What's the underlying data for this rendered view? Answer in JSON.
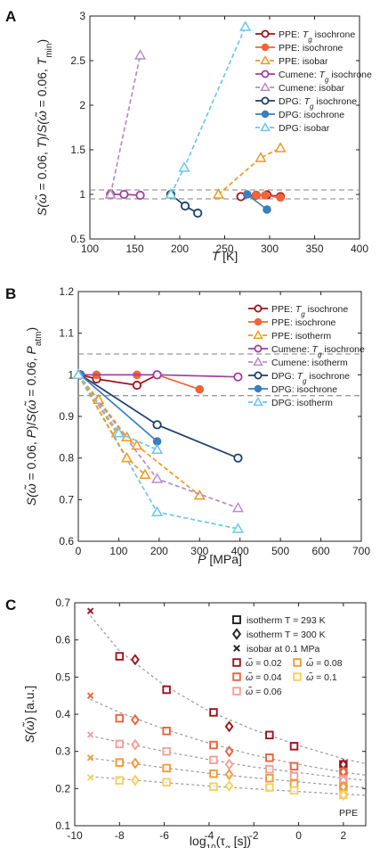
{
  "colors": {
    "ppe_tg": "#a1111a",
    "ppe_iso": "#f0643a",
    "ppe_bar": "#f0981f",
    "cumene": "#a040a0",
    "cumene_light": "#b88bc9",
    "dpg_tg": "#1c3f6e",
    "dpg_iso": "#3a7fbf",
    "dpg_bar": "#6bc6ec",
    "c_002": "#9b1420",
    "c_004": "#e9633a",
    "c_006": "#f2a198",
    "c_008": "#f19a38",
    "c_01": "#f7cf5b",
    "fit": "#9a9a9a",
    "ref": "#9a9a9a",
    "ppe_dark_marker": "#7b0f18"
  },
  "chart_data": [
    {
      "panel": "A",
      "type": "line",
      "ylabel": "S(ω̃ = 0.06, T) / S(ω̃ = 0.06, T_min)",
      "ylabel_parts": [
        "S(",
        "ω̃",
        " = 0.06, ",
        "T",
        ")/",
        "S(",
        "ω̃",
        " = 0.06, ",
        "T",
        "min",
        ")"
      ],
      "xlabel": "T",
      "xlabel_unit": "[K]",
      "xlim": [
        100,
        400
      ],
      "ylim": [
        0.5,
        3
      ],
      "xticks": [
        100,
        150,
        200,
        250,
        300,
        350,
        400
      ],
      "yticks": [
        0.5,
        1,
        1.5,
        2,
        2.5,
        3
      ],
      "ytick_labels": [
        "0.5",
        "1",
        "1.5",
        "2",
        "2.5",
        "3"
      ],
      "ref_lines": [
        0.95,
        1.05
      ],
      "legend_position": "top-right",
      "series": [
        {
          "name": "PPE: ",
          "name_italic": "T",
          "name_sub": "g",
          "name_tail": " isochrone",
          "color": "#a1111a",
          "marker": "circle-open",
          "style": "solid",
          "x": [
            268,
            285,
            297,
            312
          ],
          "y": [
            0.975,
            0.99,
            0.995,
            0.975
          ]
        },
        {
          "name": "PPE: isochrone",
          "color": "#f0643a",
          "marker": "circle-filled",
          "style": "solid",
          "x": [
            285,
            295,
            312
          ],
          "y": [
            0.99,
            0.99,
            0.965
          ]
        },
        {
          "name": "PPE: isobar",
          "color": "#f0981f",
          "marker": "triangle-open",
          "style": "dashed",
          "x": [
            243,
            290,
            312
          ],
          "y": [
            1.0,
            1.41,
            1.52
          ]
        },
        {
          "name": "Cumene: ",
          "name_italic": "T",
          "name_sub": "g",
          "name_tail": " isochrone",
          "color": "#a040a0",
          "marker": "circle-open",
          "style": "solid",
          "x": [
            123,
            138,
            156
          ],
          "y": [
            1.0,
            1.0,
            0.99
          ]
        },
        {
          "name": "Cumene: isobar",
          "color": "#b88bc9",
          "marker": "triangle-open",
          "style": "dashed",
          "x": [
            123,
            156
          ],
          "y": [
            1.0,
            2.56
          ]
        },
        {
          "name": "DPG: ",
          "name_italic": "T",
          "name_sub": "g",
          "name_tail": " isochrone",
          "color": "#1c3f6e",
          "marker": "circle-open",
          "style": "solid",
          "x": [
            190,
            206,
            220
          ],
          "y": [
            1.0,
            0.87,
            0.79
          ]
        },
        {
          "name": "DPG: isochrone",
          "color": "#3a7fbf",
          "marker": "circle-filled",
          "style": "solid",
          "x": [
            275,
            297
          ],
          "y": [
            1.0,
            0.83
          ]
        },
        {
          "name": "DPG: isobar",
          "color": "#6bc6ec",
          "marker": "triangle-open",
          "style": "dashed",
          "x": [
            190,
            205,
            273
          ],
          "y": [
            1.0,
            1.3,
            2.88
          ]
        }
      ]
    },
    {
      "panel": "B",
      "type": "line",
      "ylabel": "S(ω̃ = 0.06, P) / S(ω̃ = 0.06, P_atm)",
      "ylabel_parts": [
        "S(",
        "ω̃",
        " = 0.06, ",
        "P",
        ")/",
        "S(",
        "ω̃",
        " = 0.06, ",
        "P",
        "atm",
        ")"
      ],
      "xlabel": "P",
      "xlabel_unit": "[MPa]",
      "xlim": [
        0,
        700
      ],
      "ylim": [
        0.6,
        1.2
      ],
      "xticks": [
        0,
        100,
        200,
        300,
        400,
        500,
        600,
        700
      ],
      "yticks": [
        0.6,
        0.7,
        0.8,
        0.9,
        1.0,
        1.1,
        1.2
      ],
      "ytick_labels": [
        "0.6",
        "0.7",
        "0.8",
        "0.9",
        "1",
        "1.1",
        "1.2"
      ],
      "ref_lines": [
        0.95,
        1.05
      ],
      "legend_position": "top-right",
      "series": [
        {
          "name": "PPE: ",
          "name_italic": "T",
          "name_sub": "g",
          "name_tail": " isochrone",
          "color": "#a1111a",
          "marker": "circle-open",
          "style": "solid",
          "x": [
            5,
            45,
            145,
            195
          ],
          "y": [
            1.0,
            0.99,
            0.975,
            1.0
          ]
        },
        {
          "name": "PPE: isochrone",
          "color": "#f0643a",
          "marker": "circle-filled",
          "style": "solid",
          "x": [
            5,
            45,
            145,
            195,
            300
          ],
          "y": [
            1.0,
            1.0,
            1.0,
            1.0,
            0.965
          ]
        },
        {
          "name": "PPE: isotherm",
          "color": "#f0981f",
          "marker": "triangle-open",
          "style": "dashed",
          "x": [
            0,
            95,
            145,
            300
          ],
          "y": [
            1.0,
            0.86,
            0.83,
            0.71
          ]
        },
        {
          "name": "Cumene: ",
          "name_italic": "T",
          "name_sub": "g",
          "name_tail": " isochrone",
          "color": "#a040a0",
          "marker": "circle-open",
          "style": "solid",
          "x": [
            5,
            195,
            395
          ],
          "y": [
            1.0,
            1.0,
            0.995
          ]
        },
        {
          "name": "Cumene: isotherm",
          "color": "#b88bc9",
          "marker": "triangle-open",
          "style": "dashed",
          "x": [
            0,
            195,
            395
          ],
          "y": [
            1.0,
            0.75,
            0.68
          ]
        },
        {
          "name": "DPG: ",
          "name_italic": "T",
          "name_sub": "g",
          "name_tail": " isochrone",
          "color": "#1c3f6e",
          "marker": "circle-open",
          "style": "solid",
          "x": [
            5,
            195,
            395
          ],
          "y": [
            1.0,
            0.88,
            0.8
          ]
        },
        {
          "name": "DPG: isochrone",
          "color": "#3a7fbf",
          "marker": "circle-filled",
          "style": "solid",
          "x": [
            5,
            195
          ],
          "y": [
            1.0,
            0.84
          ]
        },
        {
          "name": "DPG: isotherm",
          "color": "#6bc6ec",
          "marker": "triangle-open",
          "style": "dashed",
          "x": [
            0,
            195,
            395
          ],
          "y": [
            1.0,
            0.67,
            0.63
          ]
        },
        {
          "name": "",
          "color": "#f0981f",
          "marker": "triangle-open",
          "style": "dashed",
          "x": [
            0,
            120,
            165
          ],
          "y": [
            1.0,
            0.8,
            0.76
          ]
        },
        {
          "name": "",
          "color": "#f0981f",
          "marker": "triangle-open",
          "style": "dashed",
          "x": [
            0,
            50,
            120
          ],
          "y": [
            1.0,
            0.94,
            0.85
          ]
        },
        {
          "name": "",
          "color": "#6bc6ec",
          "marker": "triangle-open",
          "style": "dashed",
          "x": [
            0,
            100,
            195
          ],
          "y": [
            1.0,
            0.86,
            0.82
          ]
        }
      ]
    },
    {
      "panel": "C",
      "type": "scatter",
      "ylabel": "S(ω̃) [a.u.]",
      "ylabel_parts": [
        "S(",
        "ω̃",
        ") [a.u.]"
      ],
      "xlabel": "log10(τα [s])",
      "xlabel_parts": [
        "log",
        "10",
        "(τ",
        "α",
        " [s])"
      ],
      "xlim": [
        -10,
        3
      ],
      "ylim": [
        0.1,
        0.7
      ],
      "xticks": [
        -10,
        -8,
        -6,
        -4,
        -2,
        0,
        2
      ],
      "yticks": [
        0.1,
        0.2,
        0.3,
        0.4,
        0.5,
        0.6,
        0.7
      ],
      "ytick_labels": [
        "0.1",
        "0.2",
        "0.3",
        "0.4",
        "0.5",
        "0.6",
        "0.7"
      ],
      "annotation": "PPE",
      "legend_position": "top-right",
      "marker_legend": [
        {
          "label": "isotherm T = 293 K",
          "marker": "square"
        },
        {
          "label": "isotherm T = 300 K",
          "marker": "diamond"
        },
        {
          "label": "isobar at 0.1 MPa",
          "marker": "x"
        }
      ],
      "color_legend": [
        {
          "label": "ω̃ = 0.02",
          "value": "0.02",
          "color": "#9b1420"
        },
        {
          "label": "ω̃ = 0.08",
          "value": "0.08",
          "color": "#f19a38"
        },
        {
          "label": "ω̃ = 0.04",
          "value": "0.04",
          "color": "#e9633a"
        },
        {
          "label": "ω̃ = 0.1",
          "value": "0.1",
          "color": "#f7cf5b"
        },
        {
          "label": "ω̃ = 0.06",
          "value": "0.06",
          "color": "#f2a198"
        }
      ],
      "series": [
        {
          "name": "ω̃ = 0.02",
          "color": "#9b1420",
          "square": {
            "x": [
              -8.0,
              -5.9,
              -3.8,
              -1.3,
              -0.2,
              2.0
            ],
            "y": [
              0.556,
              0.466,
              0.405,
              0.344,
              0.314,
              0.265
            ]
          },
          "diamond": {
            "x": [
              -7.3,
              -3.1,
              2.0
            ],
            "y": [
              0.547,
              0.367,
              0.265
            ]
          },
          "cross": {
            "x": [
              -9.3
            ],
            "y": [
              0.678
            ]
          },
          "fit": {
            "x": [
              -9.3,
              -8,
              -6,
              -4,
              -2,
              0,
              2,
              3
            ],
            "y": [
              0.665,
              0.57,
              0.478,
              0.408,
              0.358,
              0.316,
              0.28,
              0.267
            ]
          }
        },
        {
          "name": "ω̃ = 0.04",
          "color": "#e9633a",
          "square": {
            "x": [
              -8.0,
              -5.9,
              -3.8,
              -1.3,
              -0.2,
              2.0
            ],
            "y": [
              0.389,
              0.355,
              0.317,
              0.283,
              0.26,
              0.245
            ]
          },
          "diamond": {
            "x": [
              -7.3,
              -3.1,
              2.0
            ],
            "y": [
              0.385,
              0.3,
              0.245
            ]
          },
          "cross": {
            "x": [
              -9.3
            ],
            "y": [
              0.45
            ]
          },
          "fit": {
            "x": [
              -9.3,
              -8,
              -6,
              -4,
              -2,
              0,
              2,
              3
            ],
            "y": [
              0.44,
              0.405,
              0.36,
              0.322,
              0.29,
              0.265,
              0.244,
              0.236
            ]
          }
        },
        {
          "name": "ω̃ = 0.06",
          "color": "#f2a198",
          "square": {
            "x": [
              -8.0,
              -5.9,
              -3.8,
              -1.3,
              -0.2,
              2.0
            ],
            "y": [
              0.32,
              0.3,
              0.277,
              0.252,
              0.233,
              0.225
            ]
          },
          "diamond": {
            "x": [
              -7.3,
              -3.1,
              2.0
            ],
            "y": [
              0.318,
              0.265,
              0.222
            ]
          },
          "cross": {
            "x": [
              -9.3
            ],
            "y": [
              0.345
            ]
          },
          "fit": {
            "x": [
              -9.3,
              -8,
              -6,
              -4,
              -2,
              0,
              2,
              3
            ],
            "y": [
              0.342,
              0.325,
              0.3,
              0.278,
              0.258,
              0.243,
              0.228,
              0.222
            ]
          }
        },
        {
          "name": "ω̃ = 0.08",
          "color": "#f19a38",
          "square": {
            "x": [
              -8.0,
              -5.9,
              -3.8,
              -1.3,
              -0.2,
              2.0
            ],
            "y": [
              0.27,
              0.255,
              0.24,
              0.228,
              0.213,
              0.205
            ]
          },
          "diamond": {
            "x": [
              -7.3,
              -3.1,
              2.0
            ],
            "y": [
              0.268,
              0.238,
              0.205
            ]
          },
          "cross": {
            "x": [
              -9.3
            ],
            "y": [
              0.283
            ]
          },
          "fit": {
            "x": [
              -9.3,
              -8,
              -6,
              -4,
              -2,
              0,
              2,
              3
            ],
            "y": [
              0.282,
              0.272,
              0.256,
              0.241,
              0.229,
              0.218,
              0.207,
              0.203
            ]
          }
        },
        {
          "name": "ω̃ = 0.1",
          "color": "#f7cf5b",
          "square": {
            "x": [
              -8.0,
              -5.9,
              -3.8,
              -1.3,
              -0.2,
              2.0
            ],
            "y": [
              0.222,
              0.217,
              0.205,
              0.203,
              0.195,
              0.183
            ]
          },
          "diamond": {
            "x": [
              -7.3,
              -3.1,
              2.0
            ],
            "y": [
              0.222,
              0.207,
              0.183
            ]
          },
          "cross": {
            "x": [
              -9.3
            ],
            "y": [
              0.23
            ]
          },
          "fit": {
            "x": [
              -9.3,
              -8,
              -6,
              -4,
              -2,
              0,
              2,
              3
            ],
            "y": [
              0.232,
              0.226,
              0.216,
              0.207,
              0.199,
              0.192,
              0.185,
              0.182
            ]
          }
        }
      ]
    }
  ]
}
